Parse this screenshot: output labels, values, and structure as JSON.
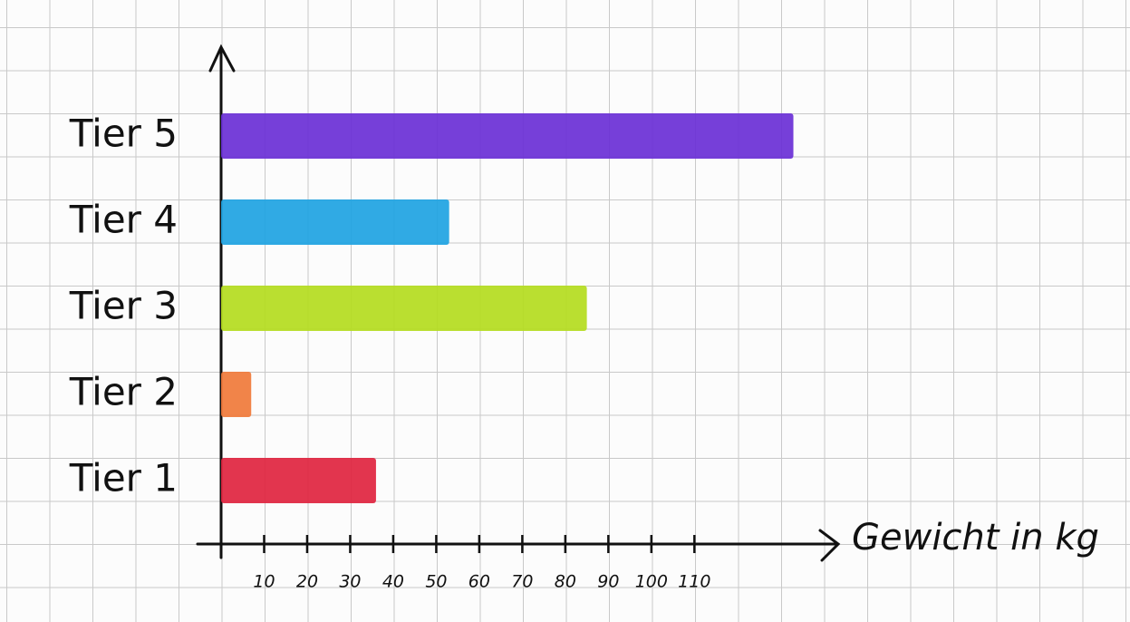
{
  "chart_data": {
    "type": "hbar",
    "categories": [
      "Tier 1",
      "Tier 2",
      "Tier 3",
      "Tier 4",
      "Tier 5"
    ],
    "values": [
      36,
      7,
      85,
      53,
      133
    ],
    "colors": [
      "#e0243f",
      "#f07a3a",
      "#b4dc1e",
      "#1ea3e2",
      "#6a2fd6"
    ],
    "xlabel": "Gewicht in kg",
    "xlim": [
      0,
      143
    ],
    "xticks": [
      10,
      20,
      30,
      40,
      50,
      60,
      70,
      80,
      90,
      100,
      110
    ]
  }
}
